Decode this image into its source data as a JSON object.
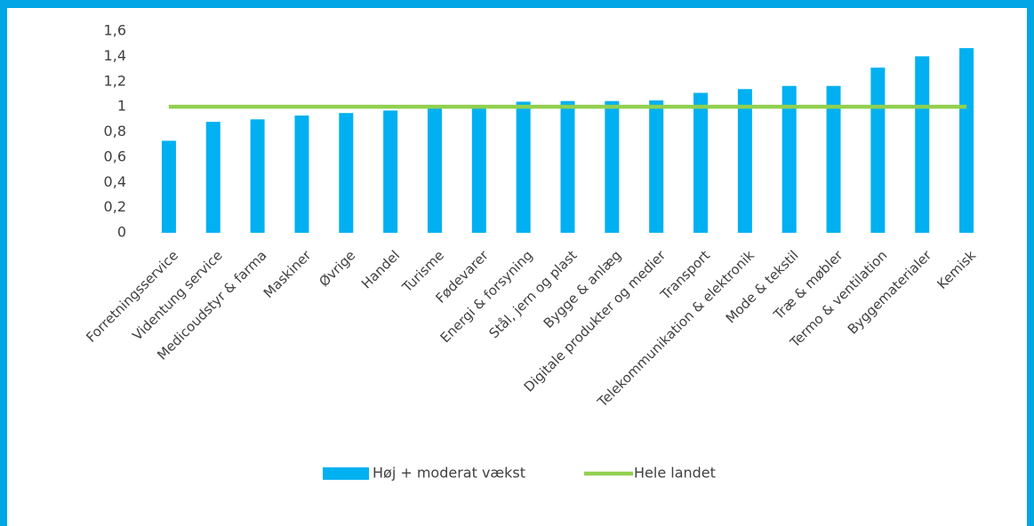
{
  "chart_data": {
    "type": "bar",
    "categories": [
      "Forretningsservice",
      "Videntung service",
      "Medicoudstyr & farma",
      "Maskiner",
      "Øvrige",
      "Handel",
      "Turisme",
      "Fødevarer",
      "Energi & forsyning",
      "Stål, jern og plast",
      "Bygge & anlæg",
      "Digitale produkter og medier",
      "Transport",
      "Telekommunikation & elektronik",
      "Mode & tekstil",
      "Træ & møbler",
      "Termo & ventilation",
      "Byggematerialer",
      "Kemisk"
    ],
    "series": [
      {
        "name": "Høj + moderat vækst",
        "type": "bar",
        "color": "#00b0f0",
        "values": [
          0.73,
          0.88,
          0.9,
          0.93,
          0.95,
          0.97,
          0.99,
          1.0,
          1.04,
          1.045,
          1.045,
          1.05,
          1.11,
          1.14,
          1.165,
          1.165,
          1.31,
          1.4,
          1.465
        ]
      },
      {
        "name": "Hele landet",
        "type": "line",
        "color": "#92d050",
        "values": [
          1,
          1,
          1,
          1,
          1,
          1,
          1,
          1,
          1,
          1,
          1,
          1,
          1,
          1,
          1,
          1,
          1,
          1,
          1
        ]
      }
    ],
    "ylim": [
      0,
      1.6
    ],
    "yticks": [
      0,
      {
        "value": 0.2,
        "label": "0,2"
      },
      {
        "value": 0.4,
        "label": "0,4"
      },
      {
        "value": 0.6,
        "label": "0,6"
      },
      {
        "value": 0.8,
        "label": "0,8"
      },
      1,
      {
        "value": 1.2,
        "label": "1,2"
      },
      {
        "value": 1.4,
        "label": "1,4"
      },
      {
        "value": 1.6,
        "label": "1,6"
      }
    ],
    "grid": false,
    "legend": "bottom"
  }
}
